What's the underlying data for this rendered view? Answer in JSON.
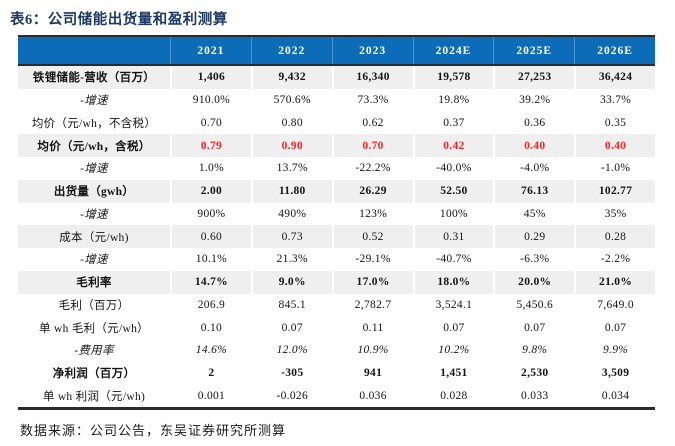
{
  "title": "表6：公司储能出货量和盈利测算",
  "source_note": "数据来源：公司公告，东吴证券研究所测算",
  "colors": {
    "header_bg": "#0d6cb7",
    "header_separator": "#4e94cd",
    "title_text": "#1c3a63",
    "stripe_bg": "#efefef",
    "highlight_red": "#ff2222",
    "border_dark": "#2a2a2a"
  },
  "table": {
    "header": [
      "",
      "2021",
      "2022",
      "2023",
      "2024E",
      "2025E",
      "2026E"
    ],
    "rows": [
      {
        "label": "铁锂储能-营收（百万）",
        "values": [
          "1,406",
          "9,432",
          "16,340",
          "19,578",
          "27,253",
          "36,424"
        ],
        "bold": true,
        "shaded": true
      },
      {
        "label": "-增速",
        "values": [
          "910.0%",
          "570.6%",
          "73.3%",
          "19.8%",
          "39.2%",
          "33.7%"
        ],
        "italic_label": true
      },
      {
        "label": "均价（元/wh，不含税）",
        "values": [
          "0.70",
          "0.80",
          "0.62",
          "0.37",
          "0.36",
          "0.35"
        ]
      },
      {
        "label": "均价（元/wh，含税）",
        "values": [
          "0.79",
          "0.90",
          "0.70",
          "0.42",
          "0.40",
          "0.40"
        ],
        "bold": true,
        "shaded": true,
        "red_values": true
      },
      {
        "label": "-增速",
        "values": [
          "1.0%",
          "13.7%",
          "-22.2%",
          "-40.0%",
          "-4.0%",
          "-1.0%"
        ],
        "italic_label": true
      },
      {
        "label": "出货量（gwh）",
        "values": [
          "2.00",
          "11.80",
          "26.29",
          "52.50",
          "76.13",
          "102.77"
        ],
        "bold": true,
        "shaded": true
      },
      {
        "label": "-增速",
        "values": [
          "900%",
          "490%",
          "123%",
          "100%",
          "45%",
          "35%"
        ],
        "italic_label": true
      },
      {
        "label": "成本（元/wh)",
        "values": [
          "0.60",
          "0.73",
          "0.52",
          "0.31",
          "0.29",
          "0.28"
        ],
        "shaded": true
      },
      {
        "label": "-增速",
        "values": [
          "10.1%",
          "21.3%",
          "-29.1%",
          "-40.7%",
          "-6.3%",
          "-2.2%"
        ],
        "italic_label": true
      },
      {
        "label": "毛利率",
        "values": [
          "14.7%",
          "9.0%",
          "17.0%",
          "18.0%",
          "20.0%",
          "21.0%"
        ],
        "bold": true,
        "shaded": true
      },
      {
        "label": "毛利（百万）",
        "values": [
          "206.9",
          "845.1",
          "2,782.7",
          "3,524.1",
          "5,450.6",
          "7,649.0"
        ]
      },
      {
        "label": "单 wh 毛利（元/wh）",
        "values": [
          "0.10",
          "0.07",
          "0.11",
          "0.07",
          "0.07",
          "0.07"
        ]
      },
      {
        "label": "-费用率",
        "values": [
          "14.6%",
          "12.0%",
          "10.9%",
          "10.2%",
          "9.8%",
          "9.9%"
        ],
        "italic_label": true,
        "italic_values": true
      },
      {
        "label": "净利润（百万）",
        "values": [
          "2",
          "-305",
          "941",
          "1,451",
          "2,530",
          "3,509"
        ],
        "bold": true
      },
      {
        "label": "单 wh 利润（元/wh)",
        "values": [
          "0.001",
          "-0.026",
          "0.036",
          "0.028",
          "0.033",
          "0.034"
        ]
      }
    ]
  }
}
